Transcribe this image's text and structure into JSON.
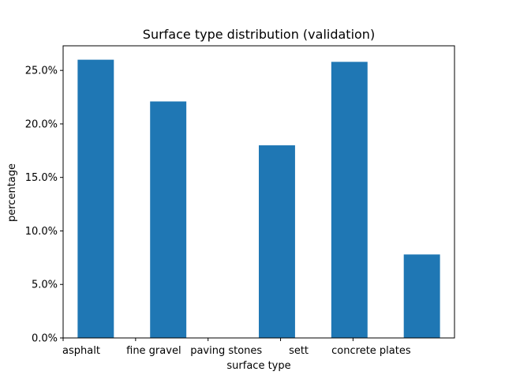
{
  "chart_data": {
    "type": "bar",
    "title": "Surface type distribution (validation)",
    "xlabel": "surface type",
    "ylabel": "percentage",
    "x_ticks": [
      {
        "label": "asphalt",
        "x": 0.0
      },
      {
        "label": "fine gravel",
        "x": 1.0
      },
      {
        "label": "paving stones",
        "x": 2.0
      },
      {
        "label": "sett",
        "x": 3.0
      },
      {
        "label": "concrete plates",
        "x": 4.0
      }
    ],
    "bars": [
      {
        "x_start": 0.2,
        "x_end": 0.7,
        "value": 26.0
      },
      {
        "x_start": 1.2,
        "x_end": 1.7,
        "value": 22.1
      },
      {
        "x_start": 2.7,
        "x_end": 3.2,
        "value": 18.0
      },
      {
        "x_start": 3.7,
        "x_end": 4.2,
        "value": 25.8
      },
      {
        "x_start": 4.7,
        "x_end": 5.2,
        "value": 7.8
      }
    ],
    "xlim": [
      0.0,
      5.4
    ],
    "ylim": [
      0,
      27.3
    ],
    "y_ticks": [
      0,
      5,
      10,
      15,
      20,
      25
    ],
    "y_tick_labels": [
      "0.0%",
      "5.0%",
      "10.0%",
      "15.0%",
      "20.0%",
      "25.0%"
    ],
    "bar_color": "#1f77b4",
    "grid": false,
    "legend": "none"
  }
}
